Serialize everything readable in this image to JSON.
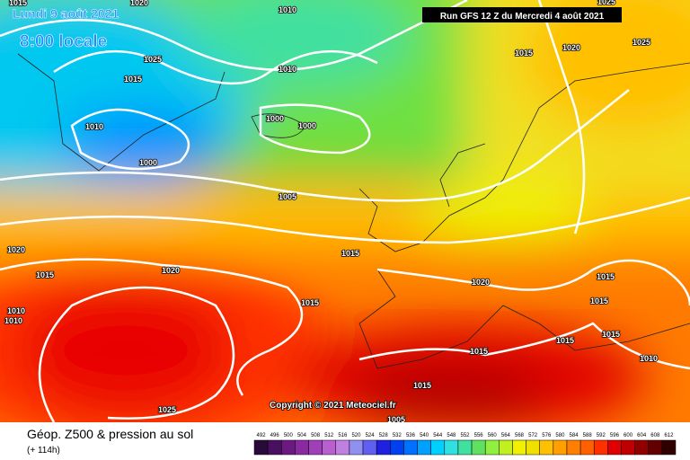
{
  "header": {
    "valid_date": "Lundi 9 août 2021",
    "local_time": "8:00 locale",
    "run": "Run GFS 12 Z du Mercredi 4 août 2021"
  },
  "map": {
    "copyright": "Copyright © 2021 Meteociel.fr",
    "isobar_labels": [
      "1015",
      "1020",
      "1010",
      "1025",
      "1015",
      "1010",
      "1010",
      "1000",
      "1000",
      "1000",
      "1005",
      "1015",
      "1020",
      "1015",
      "1010",
      "1010",
      "1020",
      "1015",
      "1020",
      "1015",
      "1020",
      "1025",
      "1025",
      "1015",
      "1015",
      "1015",
      "1015",
      "1010",
      "1015",
      "1015",
      "1025",
      "1005"
    ]
  },
  "footer": {
    "title": "Géop. Z500 & pression au sol",
    "lead": "(+ 114h)"
  },
  "scale": {
    "values": [
      492,
      496,
      500,
      504,
      508,
      512,
      516,
      520,
      524,
      528,
      532,
      536,
      540,
      544,
      548,
      552,
      556,
      560,
      564,
      568,
      572,
      576,
      580,
      584,
      588,
      592,
      596,
      600,
      604,
      608,
      612
    ],
    "colors": [
      "#2a0a3a",
      "#4a1060",
      "#6a1a80",
      "#8a2aa0",
      "#a040b8",
      "#b860d0",
      "#c080e0",
      "#9090f0",
      "#6060f0",
      "#2020e0",
      "#0040f0",
      "#0070ff",
      "#00a0ff",
      "#00d0ff",
      "#30e0e0",
      "#40e0a0",
      "#60e060",
      "#90f040",
      "#c0f020",
      "#f0f000",
      "#f0e000",
      "#ffc000",
      "#ffa000",
      "#ff8000",
      "#ff6000",
      "#ff3000",
      "#e00000",
      "#c00000",
      "#900000",
      "#600000",
      "#300000"
    ]
  }
}
